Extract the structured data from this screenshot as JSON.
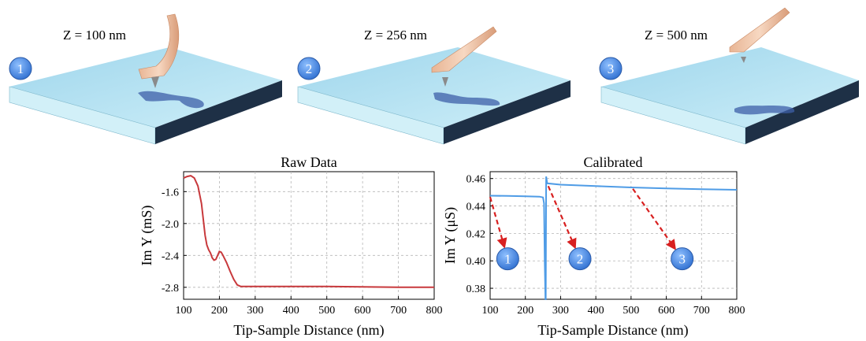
{
  "panels": [
    {
      "marker": "1",
      "z_label": "Z = 100 nm"
    },
    {
      "marker": "2",
      "z_label": "Z = 256 nm"
    },
    {
      "marker": "3",
      "z_label": "Z = 500 nm"
    }
  ],
  "colors": {
    "slab_top": "#b7e3f2",
    "slab_front": "#d2f0f8",
    "slab_side": "#1e3046",
    "cantilever": "#f2c7a8",
    "marker_fill": "#3f7fdc",
    "raw_line": "#c8393c",
    "cal_line": "#4f9ce6",
    "arrow": "#d82020"
  },
  "chart_data": [
    {
      "type": "line",
      "title": "Raw Data",
      "xlabel": "Tip-Sample Distance (nm)",
      "ylabel": "Im Y (mS)",
      "xlim": [
        100,
        800
      ],
      "ylim": [
        -2.95,
        -1.35
      ],
      "xticks": [
        "100",
        "200",
        "300",
        "400",
        "500",
        "600",
        "700",
        "800"
      ],
      "yticks": [
        "-1.6",
        "-2.0",
        "-2.4",
        "-2.8"
      ],
      "grid": true,
      "series": [
        {
          "values": [
            [
              100,
              -1.43
            ],
            [
              110,
              -1.41
            ],
            [
              120,
              -1.4
            ],
            [
              130,
              -1.43
            ],
            [
              140,
              -1.53
            ],
            [
              150,
              -1.75
            ],
            [
              155,
              -1.95
            ],
            [
              160,
              -2.15
            ],
            [
              165,
              -2.27
            ],
            [
              170,
              -2.33
            ],
            [
              175,
              -2.37
            ],
            [
              180,
              -2.43
            ],
            [
              185,
              -2.46
            ],
            [
              190,
              -2.45
            ],
            [
              195,
              -2.4
            ],
            [
              200,
              -2.35
            ],
            [
              205,
              -2.36
            ],
            [
              210,
              -2.4
            ],
            [
              220,
              -2.49
            ],
            [
              230,
              -2.6
            ],
            [
              240,
              -2.7
            ],
            [
              250,
              -2.77
            ],
            [
              260,
              -2.79
            ],
            [
              300,
              -2.79
            ],
            [
              400,
              -2.79
            ],
            [
              500,
              -2.79
            ],
            [
              600,
              -2.795
            ],
            [
              700,
              -2.8
            ],
            [
              800,
              -2.8
            ]
          ]
        }
      ]
    },
    {
      "type": "line",
      "title": "Calibrated",
      "xlabel": "Tip-Sample Distance (nm)",
      "ylabel": "Im Y (μS)",
      "xlim": [
        100,
        800
      ],
      "ylim": [
        0.372,
        0.465
      ],
      "xticks": [
        "100",
        "200",
        "300",
        "400",
        "500",
        "600",
        "700",
        "800"
      ],
      "yticks": [
        "0.38",
        "0.40",
        "0.42",
        "0.44",
        "0.46"
      ],
      "grid": true,
      "series": [
        {
          "values": [
            [
              100,
              0.4475
            ],
            [
              150,
              0.4473
            ],
            [
              200,
              0.4471
            ],
            [
              240,
              0.4468
            ],
            [
              250,
              0.4462
            ],
            [
              253,
              0.442
            ],
            [
              255,
              0.4
            ],
            [
              257,
              0.372
            ],
            [
              258,
              0.372
            ],
            [
              259,
              0.4615
            ],
            [
              262,
              0.4565
            ],
            [
              300,
              0.4555
            ],
            [
              400,
              0.4545
            ],
            [
              500,
              0.4535
            ],
            [
              600,
              0.4528
            ],
            [
              700,
              0.4522
            ],
            [
              800,
              0.4518
            ]
          ]
        }
      ],
      "annotations": [
        {
          "label": "1",
          "from": [
            100,
            0.4465
          ],
          "to": [
            150,
            0.4015
          ]
        },
        {
          "label": "2",
          "from": [
            265,
            0.4545
          ],
          "to": [
            355,
            0.4015
          ]
        },
        {
          "label": "3",
          "from": [
            505,
            0.4525
          ],
          "to": [
            645,
            0.4015
          ]
        }
      ]
    }
  ]
}
